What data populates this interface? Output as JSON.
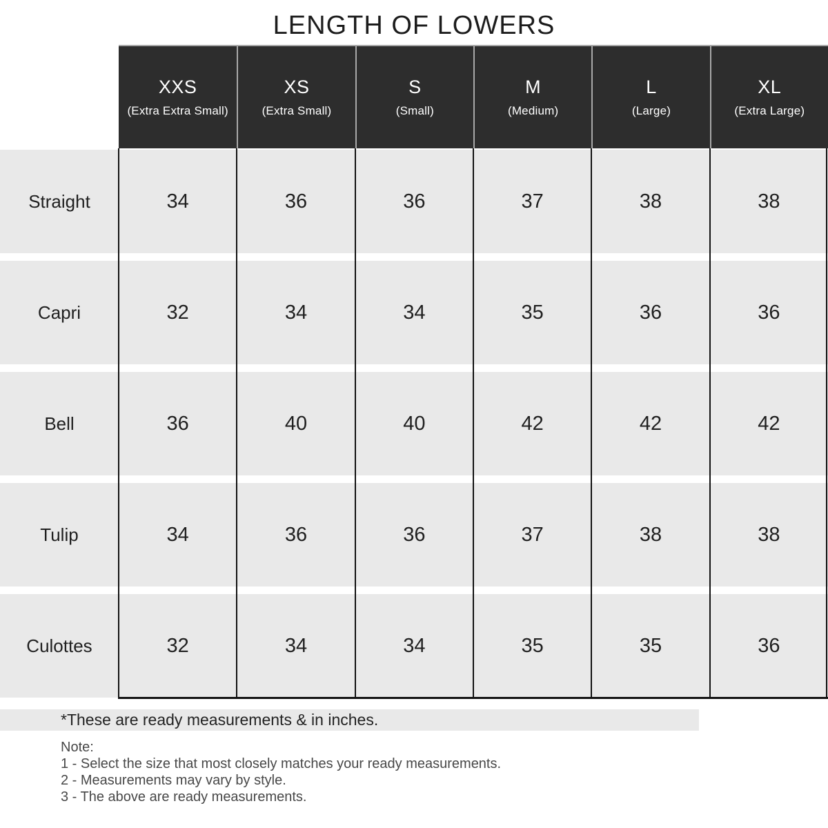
{
  "title": "LENGTH OF LOWERS",
  "colors": {
    "header_background": "#2d2d2d",
    "header_text": "#ffffff",
    "row_background": "#e9e9e9",
    "grid_line": "#111111",
    "note_text": "#474747"
  },
  "table": {
    "columns": [
      {
        "size": "XXS",
        "full": "(Extra Extra Small)"
      },
      {
        "size": "XS",
        "full": "(Extra Small)"
      },
      {
        "size": "S",
        "full": "(Small)"
      },
      {
        "size": "M",
        "full": "(Medium)"
      },
      {
        "size": "L",
        "full": "(Large)"
      },
      {
        "size": "XL",
        "full": "(Extra Large)"
      }
    ],
    "rows": [
      {
        "label": "Straight",
        "values": [
          "34",
          "36",
          "36",
          "37",
          "38",
          "38"
        ]
      },
      {
        "label": "Capri",
        "values": [
          "32",
          "34",
          "34",
          "35",
          "36",
          "36"
        ]
      },
      {
        "label": "Bell",
        "values": [
          "36",
          "40",
          "40",
          "42",
          "42",
          "42"
        ]
      },
      {
        "label": "Tulip",
        "values": [
          "34",
          "36",
          "36",
          "37",
          "38",
          "38"
        ]
      },
      {
        "label": "Culottes",
        "values": [
          "32",
          "34",
          "34",
          "35",
          "35",
          "36"
        ]
      }
    ]
  },
  "footnote": "*These are ready measurements & in inches.",
  "notes": {
    "heading": "Note:",
    "items": [
      "1 - Select the size that most closely matches your ready measurements.",
      "2 - Measurements may vary by style.",
      "3 - The above are ready measurements."
    ]
  }
}
